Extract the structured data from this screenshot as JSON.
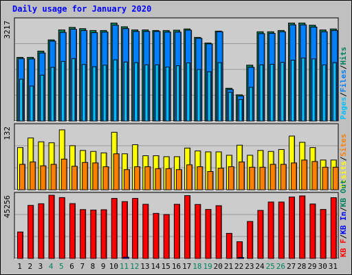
{
  "chart_data": {
    "type": "bar",
    "title": "Daily usage for January 2020",
    "colors": {
      "title": "#0000ff",
      "background": "#c0c0c0",
      "panel": "#cccccc",
      "grid": "#999999",
      "hits": "#00805c",
      "files": "#0080ff",
      "pages": "#00c0ff",
      "visits": "#ffff00",
      "sites": "#ff8000",
      "kbf": "#ff0000",
      "kbin": "#0000ff",
      "kbout": "#00805c",
      "weekday_label": "#000000",
      "weekend_label": "#00805c"
    },
    "days": [
      "1",
      "2",
      "3",
      "4",
      "5",
      "6",
      "7",
      "8",
      "9",
      "10",
      "11",
      "12",
      "13",
      "14",
      "15",
      "16",
      "17",
      "18",
      "19",
      "20",
      "21",
      "22",
      "23",
      "24",
      "25",
      "26",
      "27",
      "28",
      "29",
      "30",
      "31"
    ],
    "weekend_days": [
      4,
      5,
      11,
      12,
      18,
      19,
      25,
      26
    ],
    "panel_hits": {
      "ymax_label": "3217",
      "ymax": 3217,
      "legend": [
        {
          "text": "Pages",
          "color": "#00c0ff"
        },
        {
          "text": "/",
          "color": "#000000"
        },
        {
          "text": "Files",
          "color": "#0080ff"
        },
        {
          "text": "/",
          "color": "#000000"
        },
        {
          "text": "Hits",
          "color": "#00805c"
        }
      ],
      "series": [
        {
          "name": "Hits",
          "values": [
            2040,
            2040,
            2240,
            2600,
            2920,
            3000,
            2960,
            2900,
            2900,
            3140,
            3020,
            2920,
            2920,
            2900,
            2900,
            2910,
            2950,
            2680,
            2500,
            2880,
            1050,
            840,
            1790,
            2860,
            2860,
            2900,
            3140,
            3140,
            3070,
            2920,
            2950
          ]
        },
        {
          "name": "Files",
          "values": [
            2000,
            1990,
            2180,
            2560,
            2840,
            2940,
            2900,
            2830,
            2850,
            3070,
            2960,
            2870,
            2870,
            2870,
            2850,
            2850,
            2910,
            2650,
            2470,
            2860,
            1010,
            800,
            1720,
            2800,
            2810,
            2860,
            3080,
            3080,
            3010,
            2860,
            2900
          ]
        },
        {
          "name": "Pages",
          "values": [
            1340,
            1120,
            1470,
            1720,
            1910,
            2000,
            1810,
            1740,
            1790,
            1960,
            1890,
            1870,
            1800,
            1800,
            1730,
            1770,
            1860,
            1650,
            1580,
            1870,
            920,
            690,
            1080,
            1800,
            1820,
            1880,
            1950,
            2020,
            1990,
            1800,
            1870
          ]
        }
      ]
    },
    "panel_visits": {
      "ymax_label": "132",
      "ymax": 132,
      "legend": [
        {
          "text": "Visits",
          "color": "#ffff00"
        },
        {
          "text": "/",
          "color": "#000000"
        },
        {
          "text": "Sites",
          "color": "#ff8000"
        }
      ],
      "series": [
        {
          "name": "Visits",
          "values": [
            88,
            108,
            100,
            98,
            125,
            92,
            82,
            80,
            77,
            120,
            75,
            94,
            71,
            71,
            69,
            69,
            87,
            81,
            79,
            79,
            72,
            93,
            72,
            82,
            80,
            84,
            112,
            99,
            88,
            62,
            62
          ]
        },
        {
          "name": "Sites",
          "values": [
            53,
            58,
            50,
            53,
            64,
            49,
            57,
            56,
            48,
            75,
            42,
            48,
            48,
            44,
            44,
            42,
            52,
            48,
            38,
            45,
            48,
            58,
            47,
            47,
            53,
            53,
            56,
            62,
            59,
            47,
            47
          ]
        }
      ]
    },
    "panel_kb": {
      "ymax_label": "45256",
      "ymax": 45256,
      "legend": [
        {
          "text": "KB F",
          "color": "#ff0000"
        },
        {
          "text": "/",
          "color": "#000000"
        },
        {
          "text": "KB In",
          "color": "#0000ff"
        },
        {
          "text": "/",
          "color": "#000000"
        },
        {
          "text": "KB Out",
          "color": "#00805c"
        }
      ],
      "series": [
        {
          "name": "KB F",
          "values": [
            19000,
            38000,
            39200,
            45256,
            43600,
            39300,
            35000,
            34700,
            34900,
            43000,
            40700,
            43000,
            38800,
            32300,
            31500,
            38800,
            45000,
            38700,
            35100,
            37800,
            18000,
            12000,
            26500,
            34400,
            40400,
            40400,
            44000,
            44800,
            39000,
            35100,
            43500
          ]
        },
        {
          "name": "KB In",
          "values": [
            0,
            0,
            0,
            0,
            0,
            0,
            0,
            0,
            0,
            0,
            900,
            0,
            0,
            0,
            0,
            0,
            0,
            0,
            0,
            0,
            0,
            700,
            0,
            0,
            0,
            0,
            0,
            0,
            0,
            0,
            0
          ]
        }
      ]
    }
  }
}
